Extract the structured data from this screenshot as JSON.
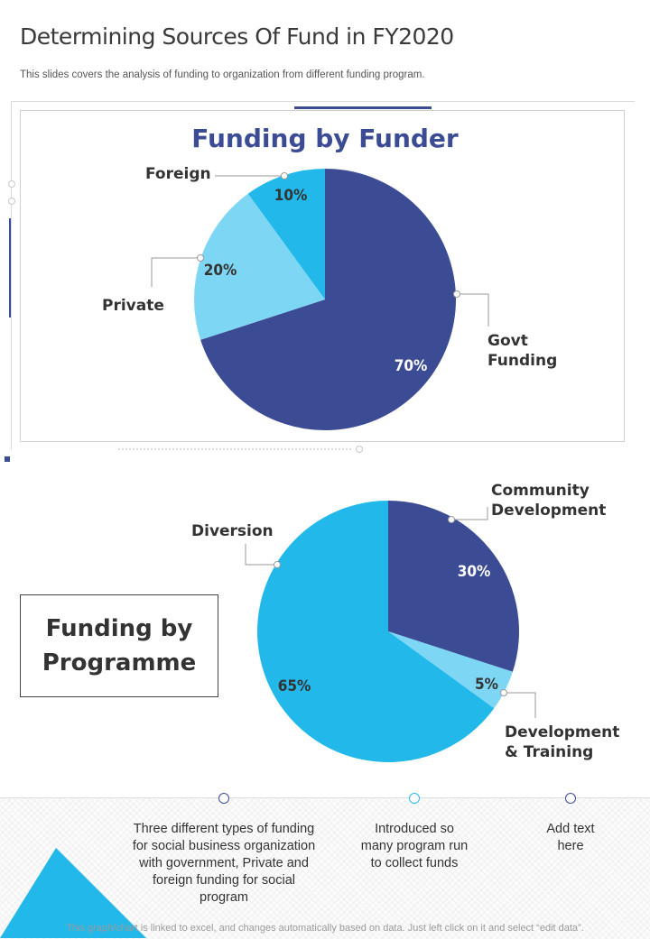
{
  "page": {
    "title": "Determining Sources Of Fund in FY2020",
    "subtitle": "This slides covers the analysis of funding to organization from different funding program."
  },
  "programme_box": {
    "line1": "Funding by",
    "line2": "Programme"
  },
  "chart_data": [
    {
      "type": "pie",
      "title": "Funding by Funder",
      "slices": [
        {
          "label_lines": [
            "Govt",
            "Funding"
          ],
          "value": 70,
          "value_label": "70%",
          "color": "#3b4c94"
        },
        {
          "label_lines": [
            "Private"
          ],
          "value": 20,
          "value_label": "20%",
          "color": "#7dd6f4"
        },
        {
          "label_lines": [
            "Foreign"
          ],
          "value": 10,
          "value_label": "10%",
          "color": "#22b9ea"
        }
      ]
    },
    {
      "type": "pie",
      "title": "Funding by Programme",
      "slices": [
        {
          "label_lines": [
            "Community",
            "Development"
          ],
          "value": 30,
          "value_label": "30%",
          "color": "#3b4c94"
        },
        {
          "label_lines": [
            "Development",
            "& Training"
          ],
          "value": 5,
          "value_label": "5%",
          "color": "#7dd6f4"
        },
        {
          "label_lines": [
            "Diversion"
          ],
          "value": 65,
          "value_label": "65%",
          "color": "#22b9ea"
        }
      ]
    }
  ],
  "timeline": [
    {
      "text": "Three different types of funding for social business organization with government, Private and foreign funding for social program"
    },
    {
      "text": "Introduced so many program run to collect funds"
    },
    {
      "text": "Add text here"
    }
  ],
  "footer": {
    "note": "This graph/chart is linked to excel, and changes automatically based on data. Just left click on it and select “edit data”."
  }
}
